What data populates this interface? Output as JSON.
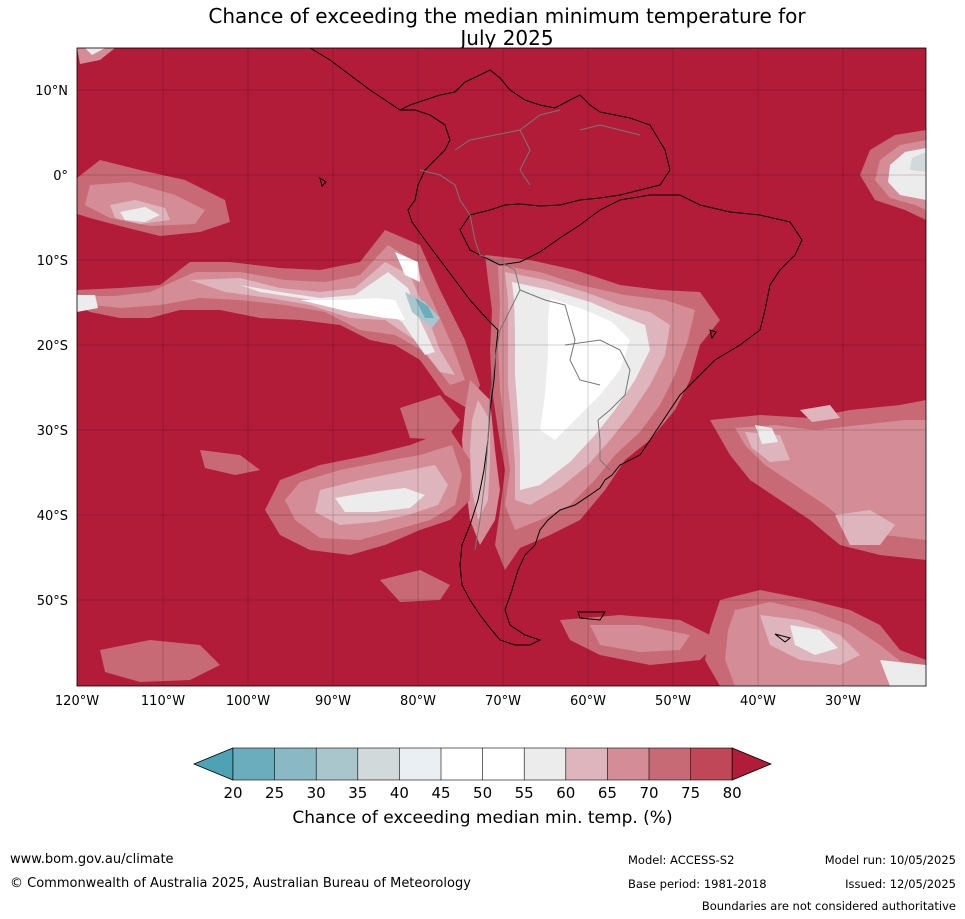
{
  "map": {
    "title_line1": "Chance of exceeding the median minimum temperature for",
    "title_line2": "July 2025",
    "lat_labels": [
      "10°N",
      "0°",
      "10°S",
      "20°S",
      "30°S",
      "40°S",
      "50°S"
    ],
    "lon_labels": [
      "120°W",
      "110°W",
      "100°W",
      "90°W",
      "80°W",
      "70°W",
      "60°W",
      "50°W",
      "40°W",
      "30°W"
    ]
  },
  "colorbar": {
    "title": "Chance of exceeding median min. temp. (%)",
    "ticks": [
      "20",
      "25",
      "30",
      "35",
      "40",
      "45",
      "50",
      "55",
      "60",
      "65",
      "70",
      "75",
      "80"
    ],
    "colors": [
      "#4da3b3",
      "#6badbc",
      "#8ab8c5",
      "#a9c6cc",
      "#d1d9db",
      "#e9eff2",
      "#ffffff",
      "#ffffff",
      "#ececec",
      "#dfb5bd",
      "#d48c96",
      "#c76a75",
      "#c04757",
      "#b21c38"
    ]
  },
  "footer": {
    "website": "www.bom.gov.au/climate",
    "copyright": "© Commonwealth of Australia 2025, Australian Bureau of Meteorology",
    "model": "Model: ACCESS-S2",
    "base_period": "Base period: 1981-2018",
    "model_run": "Model run: 10/05/2025",
    "issued": "Issued: 12/05/2025",
    "disclaimer": "Boundaries are not considered authoritative"
  }
}
